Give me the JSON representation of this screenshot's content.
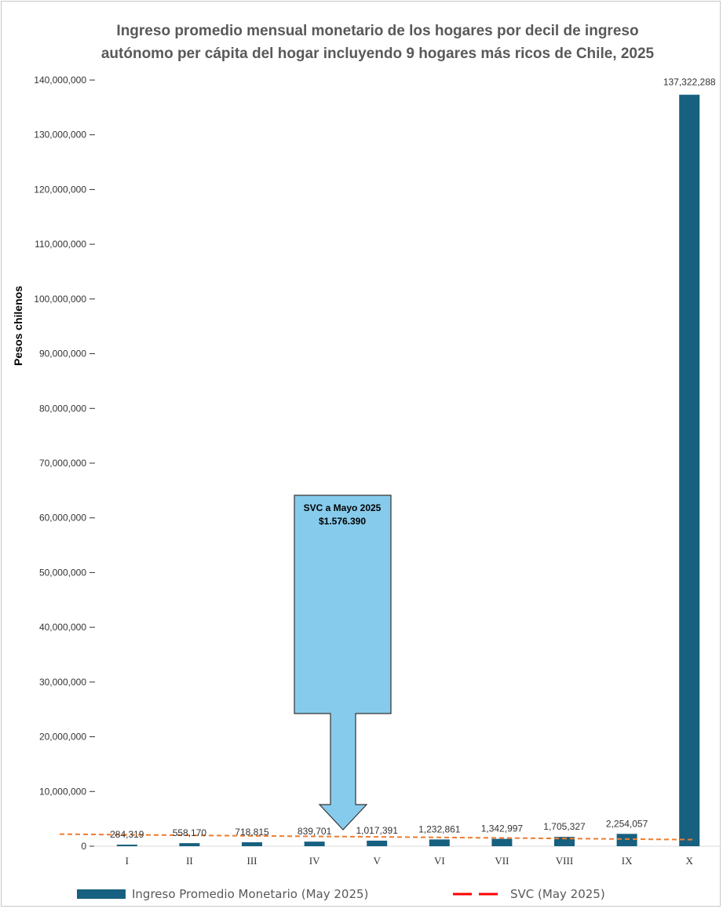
{
  "chart_data": {
    "type": "bar",
    "title": [
      "Ingreso promedio mensual monetario de los hogares por decil de ingreso",
      "autónomo per cápita del hogar incluyendo 9 hogares más ricos de Chile, 2025"
    ],
    "ylabel": "Pesos chilenos",
    "xlabel": "",
    "ylim": [
      0,
      140000000
    ],
    "yticks": [
      0,
      10000000,
      20000000,
      30000000,
      40000000,
      50000000,
      60000000,
      70000000,
      80000000,
      90000000,
      100000000,
      110000000,
      120000000,
      130000000,
      140000000
    ],
    "ytick_labels": [
      "0",
      "10,000,000",
      "20,000,000",
      "30,000,000",
      "40,000,000",
      "50,000,000",
      "60,000,000",
      "70,000,000",
      "80,000,000",
      "90,000,000",
      "100,000,000",
      "110,000,000",
      "120,000,000",
      "130,000,000",
      "140,000,000"
    ],
    "categories": [
      "I",
      "II",
      "III",
      "IV",
      "V",
      "VI",
      "VII",
      "VIII",
      "IX",
      "X"
    ],
    "series": [
      {
        "name": "Ingreso Promedio Monetario (May 2025)",
        "type": "bar",
        "color": "#17607f",
        "values": [
          284319,
          558170,
          718815,
          839701,
          1017391,
          1232861,
          1342997,
          1705327,
          2254057,
          137322288
        ],
        "labels": [
          "284,319",
          "558,170",
          "718,815",
          "839,701",
          "1,017,391",
          "1,232,861",
          "1,342,997",
          "1,705,327",
          "2,254,057",
          "137,322,288"
        ]
      },
      {
        "name": "SVC (May 2025)",
        "type": "line",
        "style": "dashed",
        "color": "#ed7d31",
        "values": [
          2100000,
          2000000,
          1900000,
          1800000,
          1700000,
          1600000,
          1500000,
          1400000,
          1300000,
          1200000
        ]
      }
    ],
    "legend": {
      "position": "bottom"
    },
    "grid": false,
    "annotation": {
      "line1": "SVC a Mayo 2025",
      "line2": "$1.576.390",
      "fill": "#87cbec",
      "category": "IV"
    }
  },
  "legend_colors": {
    "bar": "#17607f",
    "svc_swatch": "#ff0000"
  }
}
